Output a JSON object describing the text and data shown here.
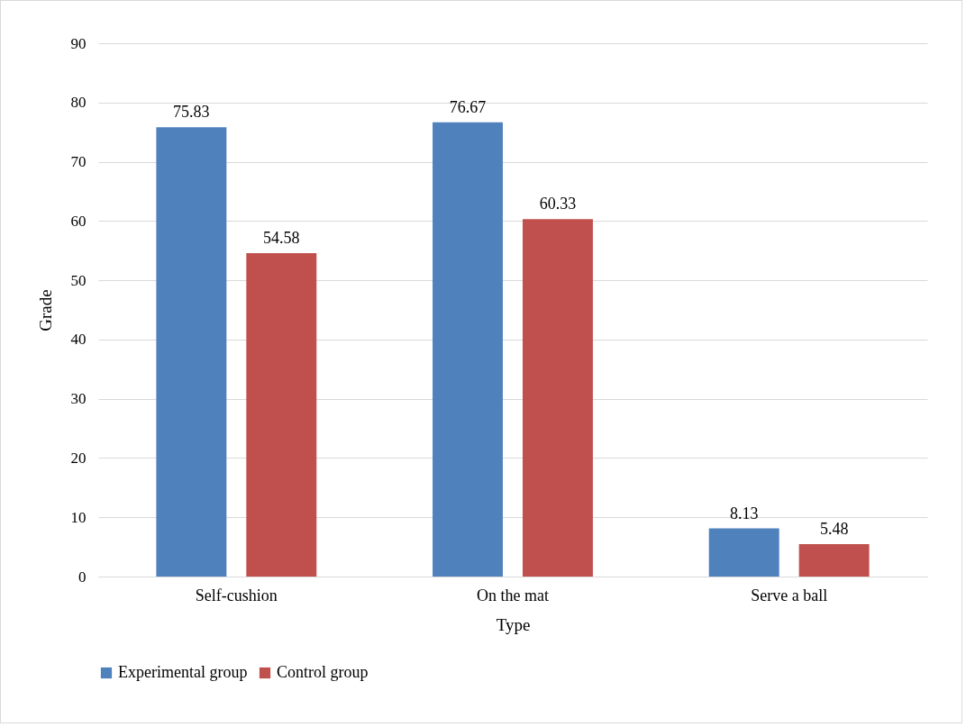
{
  "chart_data": {
    "type": "bar",
    "xlabel": "Type",
    "ylabel": "Grade",
    "categories": [
      "Self-cushion",
      "On the mat",
      "Serve a ball"
    ],
    "series": [
      {
        "name": "Experimental group",
        "color": "#4f81bd",
        "values": [
          75.83,
          76.67,
          8.13
        ]
      },
      {
        "name": "Control group",
        "color": "#c0504d",
        "values": [
          54.58,
          60.33,
          5.48
        ]
      }
    ],
    "ylim": [
      0,
      90
    ],
    "yticks": [
      0,
      10,
      20,
      30,
      40,
      50,
      60,
      70,
      80,
      90
    ],
    "grid": "y",
    "legend": "bottom",
    "data_labels": true
  }
}
